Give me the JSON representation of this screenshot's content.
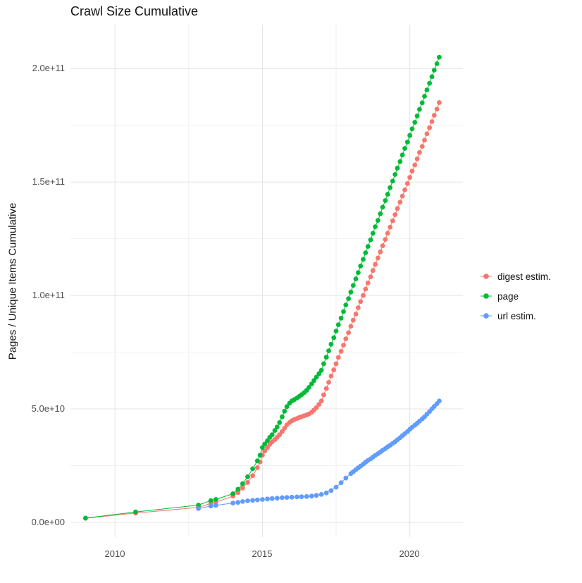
{
  "page": {
    "background": "#FFFFFF"
  },
  "chart_data": {
    "type": "scatter",
    "title": "Crawl Size Cumulative",
    "xlabel": "",
    "ylabel": "Pages / Unique Items Cumulative",
    "x_ticks": [
      2010,
      2015,
      2020
    ],
    "x_tick_labels": [
      "2010",
      "2015",
      "2020"
    ],
    "x_minor_ticks": [
      2012.5,
      2017.5
    ],
    "y_ticks_billions": [
      0,
      50,
      100,
      150,
      200
    ],
    "y_tick_labels": [
      "0.0e+00",
      "5.0e+10",
      "1.0e+11",
      "1.5e+11",
      "2.0e+11"
    ],
    "y_minor_ticks_billions": [
      25,
      75,
      125,
      175
    ],
    "x_range": [
      2008.5,
      2021.8
    ],
    "y_range_billions": [
      -6,
      219
    ],
    "grid": true,
    "legend_position": "right",
    "point_values_unit": "billions (1e9) of pages / unique items cumulative",
    "series": [
      {
        "name": "digest estim.",
        "color": "#F8766D",
        "points": [
          [
            2009,
            1.8
          ],
          [
            2010.7,
            4.1
          ],
          [
            2012.83,
            6.6
          ],
          [
            2013.25,
            8.4
          ],
          [
            2013.42,
            8.9
          ],
          [
            2014,
            11.6
          ],
          [
            2014.17,
            13.1
          ],
          [
            2014.33,
            15.1
          ],
          [
            2014.5,
            17.6
          ],
          [
            2014.67,
            20.6
          ],
          [
            2014.83,
            24.1
          ],
          [
            2014.92,
            26.6
          ],
          [
            2015,
            29.6
          ],
          [
            2015.08,
            31.4
          ],
          [
            2015.17,
            33
          ],
          [
            2015.25,
            34.4
          ],
          [
            2015.33,
            35.5
          ],
          [
            2015.42,
            36.5
          ],
          [
            2015.5,
            37.5
          ],
          [
            2015.58,
            38.6
          ],
          [
            2015.67,
            40
          ],
          [
            2015.75,
            41.5
          ],
          [
            2015.83,
            43
          ],
          [
            2015.92,
            44
          ],
          [
            2016,
            44.8
          ],
          [
            2016.08,
            45.3
          ],
          [
            2016.17,
            45.8
          ],
          [
            2016.25,
            46.2
          ],
          [
            2016.33,
            46.6
          ],
          [
            2016.42,
            47
          ],
          [
            2016.5,
            47.3
          ],
          [
            2016.58,
            47.8
          ],
          [
            2016.67,
            48.5
          ],
          [
            2016.75,
            49.5
          ],
          [
            2016.83,
            50.5
          ],
          [
            2016.92,
            52
          ],
          [
            2017,
            53.5
          ],
          [
            2017.08,
            56.2
          ],
          [
            2017.17,
            59
          ],
          [
            2017.25,
            61.7
          ],
          [
            2017.33,
            64.5
          ],
          [
            2017.42,
            67.2
          ],
          [
            2017.5,
            69.9
          ],
          [
            2017.58,
            72.7
          ],
          [
            2017.67,
            75.4
          ],
          [
            2017.75,
            78.1
          ],
          [
            2017.83,
            80.9
          ],
          [
            2017.92,
            83.6
          ],
          [
            2018,
            86.4
          ],
          [
            2018.08,
            89.1
          ],
          [
            2018.17,
            91.8
          ],
          [
            2018.25,
            94.6
          ],
          [
            2018.33,
            97.3
          ],
          [
            2018.42,
            100
          ],
          [
            2018.5,
            102.8
          ],
          [
            2018.58,
            105.5
          ],
          [
            2018.67,
            108.2
          ],
          [
            2018.75,
            111
          ],
          [
            2018.83,
            113.7
          ],
          [
            2018.92,
            116.5
          ],
          [
            2019,
            119.2
          ],
          [
            2019.08,
            121.9
          ],
          [
            2019.17,
            124.7
          ],
          [
            2019.25,
            127.4
          ],
          [
            2019.33,
            130.1
          ],
          [
            2019.42,
            132.9
          ],
          [
            2019.5,
            135.6
          ],
          [
            2019.58,
            138.3
          ],
          [
            2019.67,
            141.1
          ],
          [
            2019.75,
            143.8
          ],
          [
            2019.83,
            146.5
          ],
          [
            2019.92,
            149.3
          ],
          [
            2020,
            152
          ],
          [
            2020.08,
            154.8
          ],
          [
            2020.17,
            157.5
          ],
          [
            2020.25,
            160.2
          ],
          [
            2020.33,
            163
          ],
          [
            2020.42,
            165.7
          ],
          [
            2020.5,
            168.4
          ],
          [
            2020.58,
            171.2
          ],
          [
            2020.67,
            173.9
          ],
          [
            2020.75,
            176.6
          ],
          [
            2020.83,
            179.4
          ],
          [
            2020.92,
            182.1
          ],
          [
            2021,
            185
          ]
        ]
      },
      {
        "name": "page",
        "color": "#00BA38",
        "points": [
          [
            2009,
            1.9
          ],
          [
            2010.7,
            4.6
          ],
          [
            2012.83,
            7.6
          ],
          [
            2013.25,
            9.6
          ],
          [
            2013.42,
            10.1
          ],
          [
            2014,
            12.6
          ],
          [
            2014.17,
            14.6
          ],
          [
            2014.33,
            17.1
          ],
          [
            2014.5,
            20.1
          ],
          [
            2014.67,
            23.6
          ],
          [
            2014.83,
            27.1
          ],
          [
            2014.92,
            29.6
          ],
          [
            2015,
            33
          ],
          [
            2015.08,
            34.5
          ],
          [
            2015.17,
            36
          ],
          [
            2015.25,
            37.5
          ],
          [
            2015.33,
            38.6
          ],
          [
            2015.42,
            40.5
          ],
          [
            2015.5,
            42
          ],
          [
            2015.58,
            44
          ],
          [
            2015.67,
            46.5
          ],
          [
            2015.75,
            49
          ],
          [
            2015.83,
            51
          ],
          [
            2015.92,
            52.5
          ],
          [
            2016,
            53.5
          ],
          [
            2016.08,
            54.1
          ],
          [
            2016.17,
            54.8
          ],
          [
            2016.25,
            55.5
          ],
          [
            2016.33,
            56.3
          ],
          [
            2016.42,
            57.2
          ],
          [
            2016.5,
            58.2
          ],
          [
            2016.58,
            59.5
          ],
          [
            2016.67,
            61
          ],
          [
            2016.75,
            62.5
          ],
          [
            2016.83,
            64
          ],
          [
            2016.92,
            65.5
          ],
          [
            2017,
            67
          ],
          [
            2017.08,
            69.9
          ],
          [
            2017.17,
            72.8
          ],
          [
            2017.25,
            75.6
          ],
          [
            2017.33,
            78.5
          ],
          [
            2017.42,
            81.4
          ],
          [
            2017.5,
            84.3
          ],
          [
            2017.58,
            87.1
          ],
          [
            2017.67,
            90
          ],
          [
            2017.75,
            92.9
          ],
          [
            2017.83,
            95.8
          ],
          [
            2017.92,
            98.6
          ],
          [
            2018,
            101.5
          ],
          [
            2018.08,
            104.4
          ],
          [
            2018.17,
            107.3
          ],
          [
            2018.25,
            110.1
          ],
          [
            2018.33,
            113
          ],
          [
            2018.42,
            115.9
          ],
          [
            2018.5,
            118.8
          ],
          [
            2018.58,
            121.6
          ],
          [
            2018.67,
            124.5
          ],
          [
            2018.75,
            127.4
          ],
          [
            2018.83,
            130.3
          ],
          [
            2018.92,
            133.1
          ],
          [
            2019,
            136
          ],
          [
            2019.08,
            138.9
          ],
          [
            2019.17,
            141.8
          ],
          [
            2019.25,
            144.6
          ],
          [
            2019.33,
            147.5
          ],
          [
            2019.42,
            150.4
          ],
          [
            2019.5,
            153.3
          ],
          [
            2019.58,
            156.1
          ],
          [
            2019.67,
            159
          ],
          [
            2019.75,
            161.9
          ],
          [
            2019.83,
            164.8
          ],
          [
            2019.92,
            167.6
          ],
          [
            2020,
            170.5
          ],
          [
            2020.08,
            173.4
          ],
          [
            2020.17,
            176.3
          ],
          [
            2020.25,
            179.1
          ],
          [
            2020.33,
            182
          ],
          [
            2020.42,
            184.9
          ],
          [
            2020.5,
            187.8
          ],
          [
            2020.58,
            190.6
          ],
          [
            2020.67,
            193.5
          ],
          [
            2020.75,
            196.4
          ],
          [
            2020.83,
            199.3
          ],
          [
            2020.92,
            202.1
          ],
          [
            2021,
            205
          ]
        ]
      },
      {
        "name": "url estim.",
        "color": "#619CFF",
        "points": [
          [
            2012.83,
            6.1
          ],
          [
            2013.25,
            7.2
          ],
          [
            2013.42,
            7.5
          ],
          [
            2014,
            8.5
          ],
          [
            2014.17,
            8.8
          ],
          [
            2014.33,
            9.2
          ],
          [
            2014.5,
            9.5
          ],
          [
            2014.67,
            9.7
          ],
          [
            2014.83,
            9.9
          ],
          [
            2015,
            10.1
          ],
          [
            2015.17,
            10.3
          ],
          [
            2015.33,
            10.5
          ],
          [
            2015.5,
            10.7
          ],
          [
            2015.67,
            10.9
          ],
          [
            2015.83,
            11
          ],
          [
            2016,
            11.1
          ],
          [
            2016.17,
            11.2
          ],
          [
            2016.33,
            11.3
          ],
          [
            2016.5,
            11.4
          ],
          [
            2016.67,
            11.6
          ],
          [
            2016.83,
            11.9
          ],
          [
            2017,
            12.3
          ],
          [
            2017.17,
            13
          ],
          [
            2017.33,
            14
          ],
          [
            2017.5,
            15.5
          ],
          [
            2017.67,
            17.5
          ],
          [
            2017.83,
            19.5
          ],
          [
            2018,
            21.5
          ],
          [
            2018.08,
            22.3
          ],
          [
            2018.17,
            23.2
          ],
          [
            2018.25,
            24
          ],
          [
            2018.33,
            24.8
          ],
          [
            2018.42,
            25.7
          ],
          [
            2018.5,
            26.5
          ],
          [
            2018.58,
            27.3
          ],
          [
            2018.67,
            28
          ],
          [
            2018.75,
            28.8
          ],
          [
            2018.83,
            29.5
          ],
          [
            2018.92,
            30.3
          ],
          [
            2019,
            31
          ],
          [
            2019.08,
            31.8
          ],
          [
            2019.17,
            32.5
          ],
          [
            2019.25,
            33.3
          ],
          [
            2019.33,
            34
          ],
          [
            2019.42,
            34.8
          ],
          [
            2019.5,
            35.5
          ],
          [
            2019.58,
            36.4
          ],
          [
            2019.67,
            37.3
          ],
          [
            2019.75,
            38.2
          ],
          [
            2019.83,
            39.1
          ],
          [
            2019.92,
            40
          ],
          [
            2020,
            41
          ],
          [
            2020.08,
            41.9
          ],
          [
            2020.17,
            42.8
          ],
          [
            2020.25,
            43.7
          ],
          [
            2020.33,
            44.6
          ],
          [
            2020.42,
            45.6
          ],
          [
            2020.5,
            46.5
          ],
          [
            2020.58,
            47.7
          ],
          [
            2020.67,
            48.8
          ],
          [
            2020.75,
            50
          ],
          [
            2020.83,
            51.1
          ],
          [
            2020.92,
            52.3
          ],
          [
            2021,
            53.5
          ]
        ]
      }
    ]
  }
}
